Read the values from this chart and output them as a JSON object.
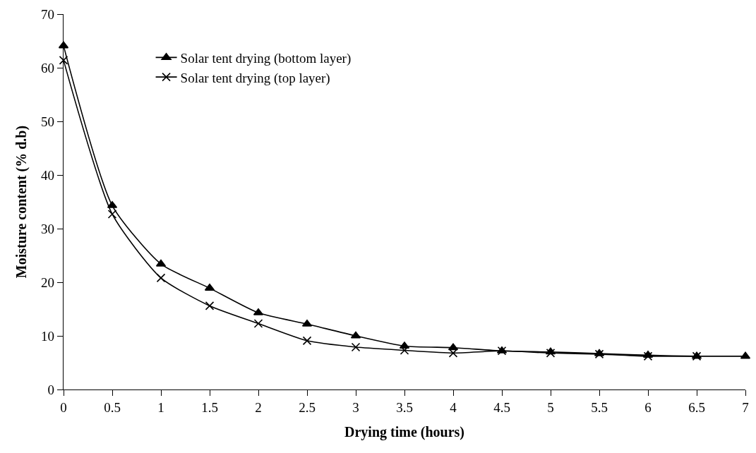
{
  "chart_data": {
    "type": "line",
    "xlabel": "Drying time (hours)",
    "ylabel": "Moisture content (% d.b)",
    "x": [
      0,
      0.5,
      1,
      1.5,
      2,
      2.5,
      3,
      3.5,
      4,
      4.5,
      5,
      5.5,
      6,
      6.5,
      7
    ],
    "series": [
      {
        "name": "Solar tent drying (bottom layer)",
        "color": "#000000",
        "marker": "triangle",
        "values": [
          64.1,
          34.3,
          23.4,
          18.9,
          14.3,
          12.2,
          10.0,
          8.1,
          7.8,
          7.2,
          7.0,
          6.7,
          6.4,
          6.2,
          6.2
        ]
      },
      {
        "name": "Solar tent drying (top layer)",
        "color": "#000000",
        "marker": "cross",
        "values": [
          61.4,
          32.7,
          20.8,
          15.6,
          12.3,
          9.1,
          7.9,
          7.3,
          6.8,
          7.2,
          6.8,
          6.6,
          6.2,
          6.2,
          null
        ]
      }
    ],
    "xlim": [
      0,
      7
    ],
    "xticks": [
      0,
      0.5,
      1,
      1.5,
      2,
      2.5,
      3,
      3.5,
      4,
      4.5,
      5,
      5.5,
      6,
      6.5,
      7
    ],
    "ylim": [
      0,
      70
    ],
    "yticks": [
      0,
      10,
      20,
      30,
      40,
      50,
      60,
      70
    ],
    "legend": "top left",
    "line_style": "solid"
  }
}
